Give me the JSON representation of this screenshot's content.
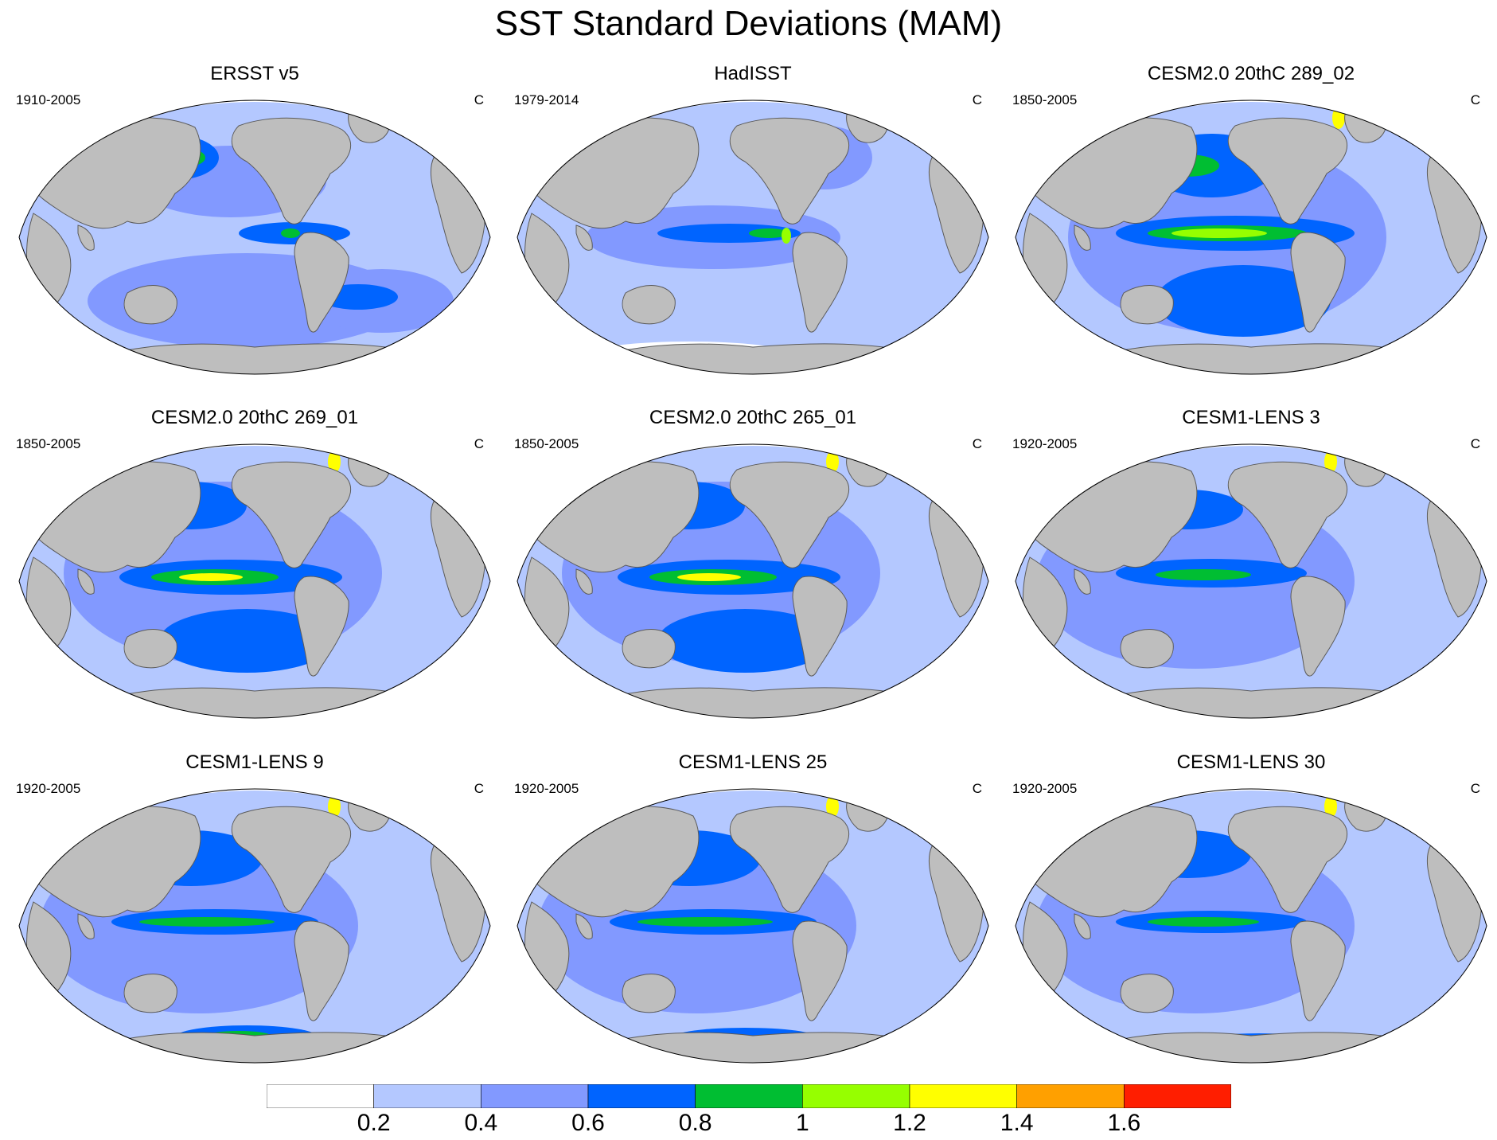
{
  "title": "SST Standard Deviations (MAM)",
  "panels": [
    {
      "title": "ERSST v5",
      "period": "1910-2005",
      "units": "C"
    },
    {
      "title": "HadISST",
      "period": "1979-2014",
      "units": "C"
    },
    {
      "title": "CESM2.0 20thC 289_02",
      "period": "1850-2005",
      "units": "C"
    },
    {
      "title": "CESM2.0 20thC 269_01",
      "period": "1850-2005",
      "units": "C"
    },
    {
      "title": "CESM2.0 20thC 265_01",
      "period": "1850-2005",
      "units": "C"
    },
    {
      "title": "CESM1-LENS 3",
      "period": "1920-2005",
      "units": "C"
    },
    {
      "title": "CESM1-LENS 9",
      "period": "1920-2005",
      "units": "C"
    },
    {
      "title": "CESM1-LENS 25",
      "period": "1920-2005",
      "units": "C"
    },
    {
      "title": "CESM1-LENS 30",
      "period": "1920-2005",
      "units": "C"
    }
  ],
  "colorbar": {
    "levels": [
      "0.2",
      "0.4",
      "0.6",
      "0.8",
      "1",
      "1.2",
      "1.4",
      "1.6"
    ],
    "colors": [
      "#ffffff",
      "#b4c8ff",
      "#8299ff",
      "#0064ff",
      "#00be32",
      "#96ff00",
      "#ffff00",
      "#ffa000",
      "#ff1e00"
    ]
  },
  "colors": {
    "land": "#bebebe",
    "coast": "#5a5a5a"
  }
}
